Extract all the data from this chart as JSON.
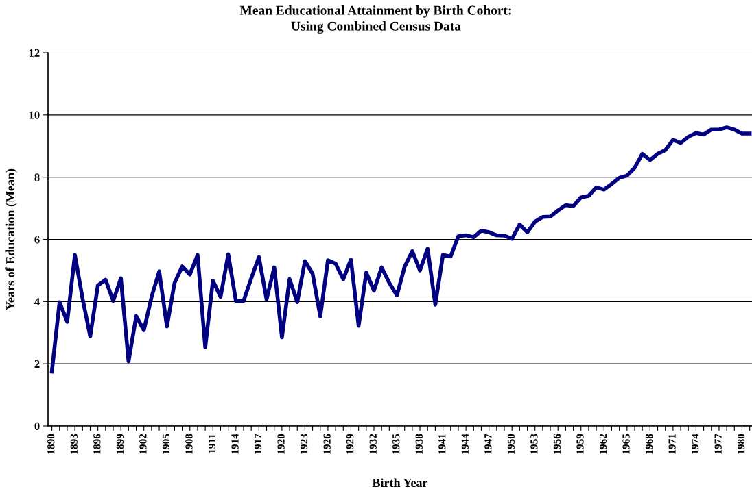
{
  "chart_data": {
    "type": "line",
    "title": "Mean Educational Attainment by Birth Cohort:\nUsing Combined Census Data",
    "xlabel": "Birth Year",
    "ylabel": "Years of Education (Mean)",
    "x": [
      1890,
      1891,
      1892,
      1893,
      1894,
      1895,
      1896,
      1897,
      1898,
      1899,
      1900,
      1901,
      1902,
      1903,
      1904,
      1905,
      1906,
      1907,
      1908,
      1909,
      1910,
      1911,
      1912,
      1913,
      1914,
      1915,
      1916,
      1917,
      1918,
      1919,
      1920,
      1921,
      1922,
      1923,
      1924,
      1925,
      1926,
      1927,
      1928,
      1929,
      1930,
      1931,
      1932,
      1933,
      1934,
      1935,
      1936,
      1937,
      1938,
      1939,
      1940,
      1941,
      1942,
      1943,
      1944,
      1945,
      1946,
      1947,
      1948,
      1949,
      1950,
      1951,
      1952,
      1953,
      1954,
      1955,
      1956,
      1957,
      1958,
      1959,
      1960,
      1961,
      1962,
      1963,
      1964,
      1965,
      1966,
      1967,
      1968,
      1969,
      1970,
      1971,
      1972,
      1973,
      1974,
      1975,
      1976,
      1977,
      1978,
      1979,
      1980,
      1981
    ],
    "series": [
      {
        "color": "#000080",
        "values": [
          1.75,
          3.98,
          3.35,
          5.5,
          4.1,
          2.88,
          4.52,
          4.7,
          4.02,
          4.75,
          2.08,
          3.53,
          3.08,
          4.15,
          4.97,
          3.2,
          4.6,
          5.13,
          4.87,
          5.5,
          2.53,
          4.67,
          4.15,
          5.52,
          4.02,
          4.02,
          4.75,
          5.43,
          4.07,
          5.1,
          2.85,
          4.72,
          3.98,
          5.3,
          4.9,
          3.52,
          5.33,
          5.22,
          4.72,
          5.35,
          3.22,
          4.93,
          4.35,
          5.1,
          4.6,
          4.2,
          5.12,
          5.62,
          5.0,
          5.7,
          3.9,
          5.5,
          5.45,
          6.1,
          6.13,
          6.07,
          6.28,
          6.23,
          6.13,
          6.12,
          6.02,
          6.48,
          6.23,
          6.57,
          6.72,
          6.73,
          6.93,
          7.1,
          7.07,
          7.35,
          7.4,
          7.67,
          7.6,
          7.78,
          7.98,
          8.05,
          8.3,
          8.75,
          8.55,
          8.75,
          8.87,
          9.2,
          9.1,
          9.3,
          9.42,
          9.37,
          9.53,
          9.53,
          9.6,
          9.53,
          9.4,
          9.4
        ]
      }
    ],
    "xlim": [
      1889.5,
      1981.3
    ],
    "ylim": [
      0,
      12
    ],
    "yticks": [
      0,
      2,
      4,
      6,
      8,
      10,
      12
    ],
    "xticks": [
      1890,
      {
        "value": 1891,
        "label": null
      },
      {
        "value": 1892,
        "label": null
      },
      1893,
      {
        "value": 1894,
        "label": null
      },
      {
        "value": 1895,
        "label": null
      },
      1896,
      {
        "value": 1897,
        "label": null
      },
      {
        "value": 1898,
        "label": null
      },
      1899,
      {
        "value": 1900,
        "label": null
      },
      {
        "value": 1901,
        "label": null
      },
      1902,
      {
        "value": 1903,
        "label": null
      },
      {
        "value": 1904,
        "label": null
      },
      1905,
      {
        "value": 1906,
        "label": null
      },
      {
        "value": 1907,
        "label": null
      },
      1908,
      {
        "value": 1909,
        "label": null
      },
      {
        "value": 1910,
        "label": null
      },
      1911,
      {
        "value": 1912,
        "label": null
      },
      {
        "value": 1913,
        "label": null
      },
      1914,
      {
        "value": 1915,
        "label": null
      },
      {
        "value": 1916,
        "label": null
      },
      1917,
      {
        "value": 1918,
        "label": null
      },
      {
        "value": 1919,
        "label": null
      },
      1920,
      {
        "value": 1921,
        "label": null
      },
      {
        "value": 1922,
        "label": null
      },
      1923,
      {
        "value": 1924,
        "label": null
      },
      {
        "value": 1925,
        "label": null
      },
      1926,
      {
        "value": 1927,
        "label": null
      },
      {
        "value": 1928,
        "label": null
      },
      1929,
      {
        "value": 1930,
        "label": null
      },
      {
        "value": 1931,
        "label": null
      },
      1932,
      {
        "value": 1933,
        "label": null
      },
      {
        "value": 1934,
        "label": null
      },
      1935,
      {
        "value": 1936,
        "label": null
      },
      {
        "value": 1937,
        "label": null
      },
      1938,
      {
        "value": 1939,
        "label": null
      },
      {
        "value": 1940,
        "label": null
      },
      1941,
      {
        "value": 1942,
        "label": null
      },
      {
        "value": 1943,
        "label": null
      },
      1944,
      {
        "value": 1945,
        "label": null
      },
      {
        "value": 1946,
        "label": null
      },
      1947,
      {
        "value": 1948,
        "label": null
      },
      {
        "value": 1949,
        "label": null
      },
      1950,
      {
        "value": 1951,
        "label": null
      },
      {
        "value": 1952,
        "label": null
      },
      1953,
      {
        "value": 1954,
        "label": null
      },
      {
        "value": 1955,
        "label": null
      },
      1956,
      {
        "value": 1957,
        "label": null
      },
      {
        "value": 1958,
        "label": null
      },
      1959,
      {
        "value": 1960,
        "label": null
      },
      {
        "value": 1961,
        "label": null
      },
      1962,
      {
        "value": 1963,
        "label": null
      },
      {
        "value": 1964,
        "label": null
      },
      1965,
      {
        "value": 1966,
        "label": null
      },
      {
        "value": 1967,
        "label": null
      },
      1968,
      {
        "value": 1969,
        "label": null
      },
      {
        "value": 1970,
        "label": null
      },
      1971,
      {
        "value": 1972,
        "label": null
      },
      {
        "value": 1973,
        "label": null
      },
      1974,
      {
        "value": 1975,
        "label": null
      },
      {
        "value": 1976,
        "label": null
      },
      1977,
      {
        "value": 1978,
        "label": null
      },
      {
        "value": 1979,
        "label": null
      },
      1980,
      {
        "value": 1981,
        "label": null
      }
    ],
    "grid": "y",
    "legend": false,
    "marker": "none",
    "line_style": "solid"
  }
}
